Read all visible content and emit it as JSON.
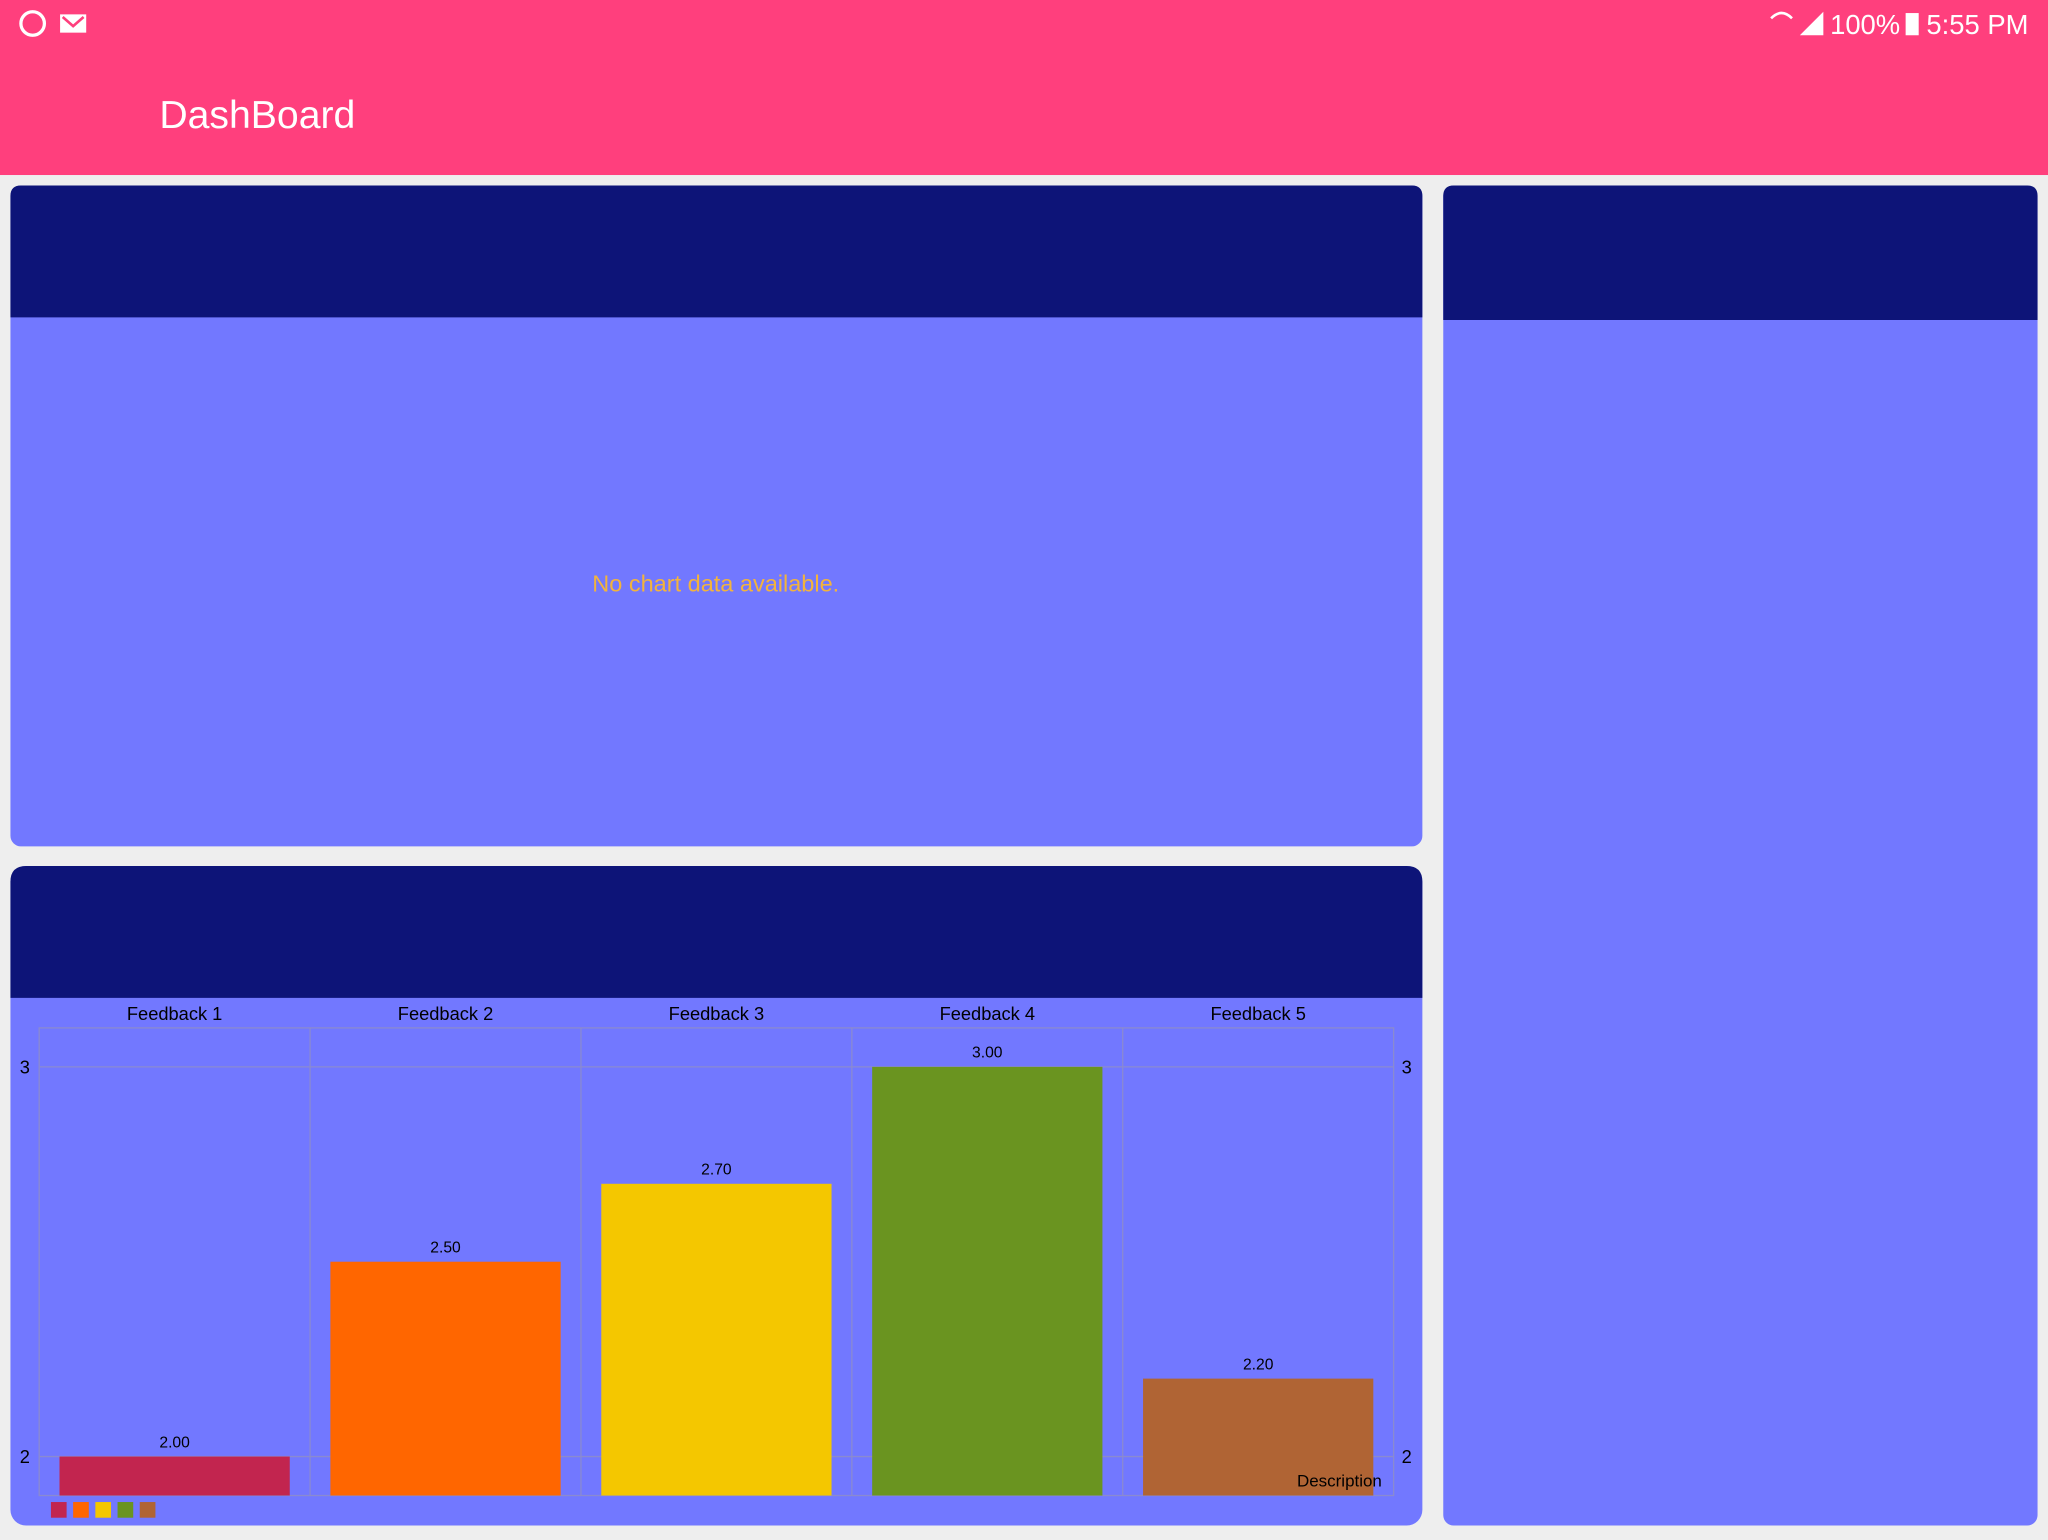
{
  "status_bar": {
    "battery": "100%",
    "time": "5:55 PM"
  },
  "app_bar": {
    "title": "DashBoard"
  },
  "top_card": {
    "message": "No chart data available."
  },
  "chart_data": {
    "type": "bar",
    "categories": [
      "Feedback 1",
      "Feedback 2",
      "Feedback 3",
      "Feedback 4",
      "Feedback 5"
    ],
    "values": [
      2.0,
      2.5,
      2.7,
      3.0,
      2.2
    ],
    "value_labels": [
      "2.00",
      "2.50",
      "2.70",
      "3.00",
      "2.20"
    ],
    "colors": [
      "#c2254f",
      "#ff6600",
      "#f4c700",
      "#6a9420",
      "#b06434"
    ],
    "ylim": [
      1.9,
      3.1
    ],
    "yticks": [
      2,
      3
    ],
    "grid": true,
    "description": "Description"
  }
}
